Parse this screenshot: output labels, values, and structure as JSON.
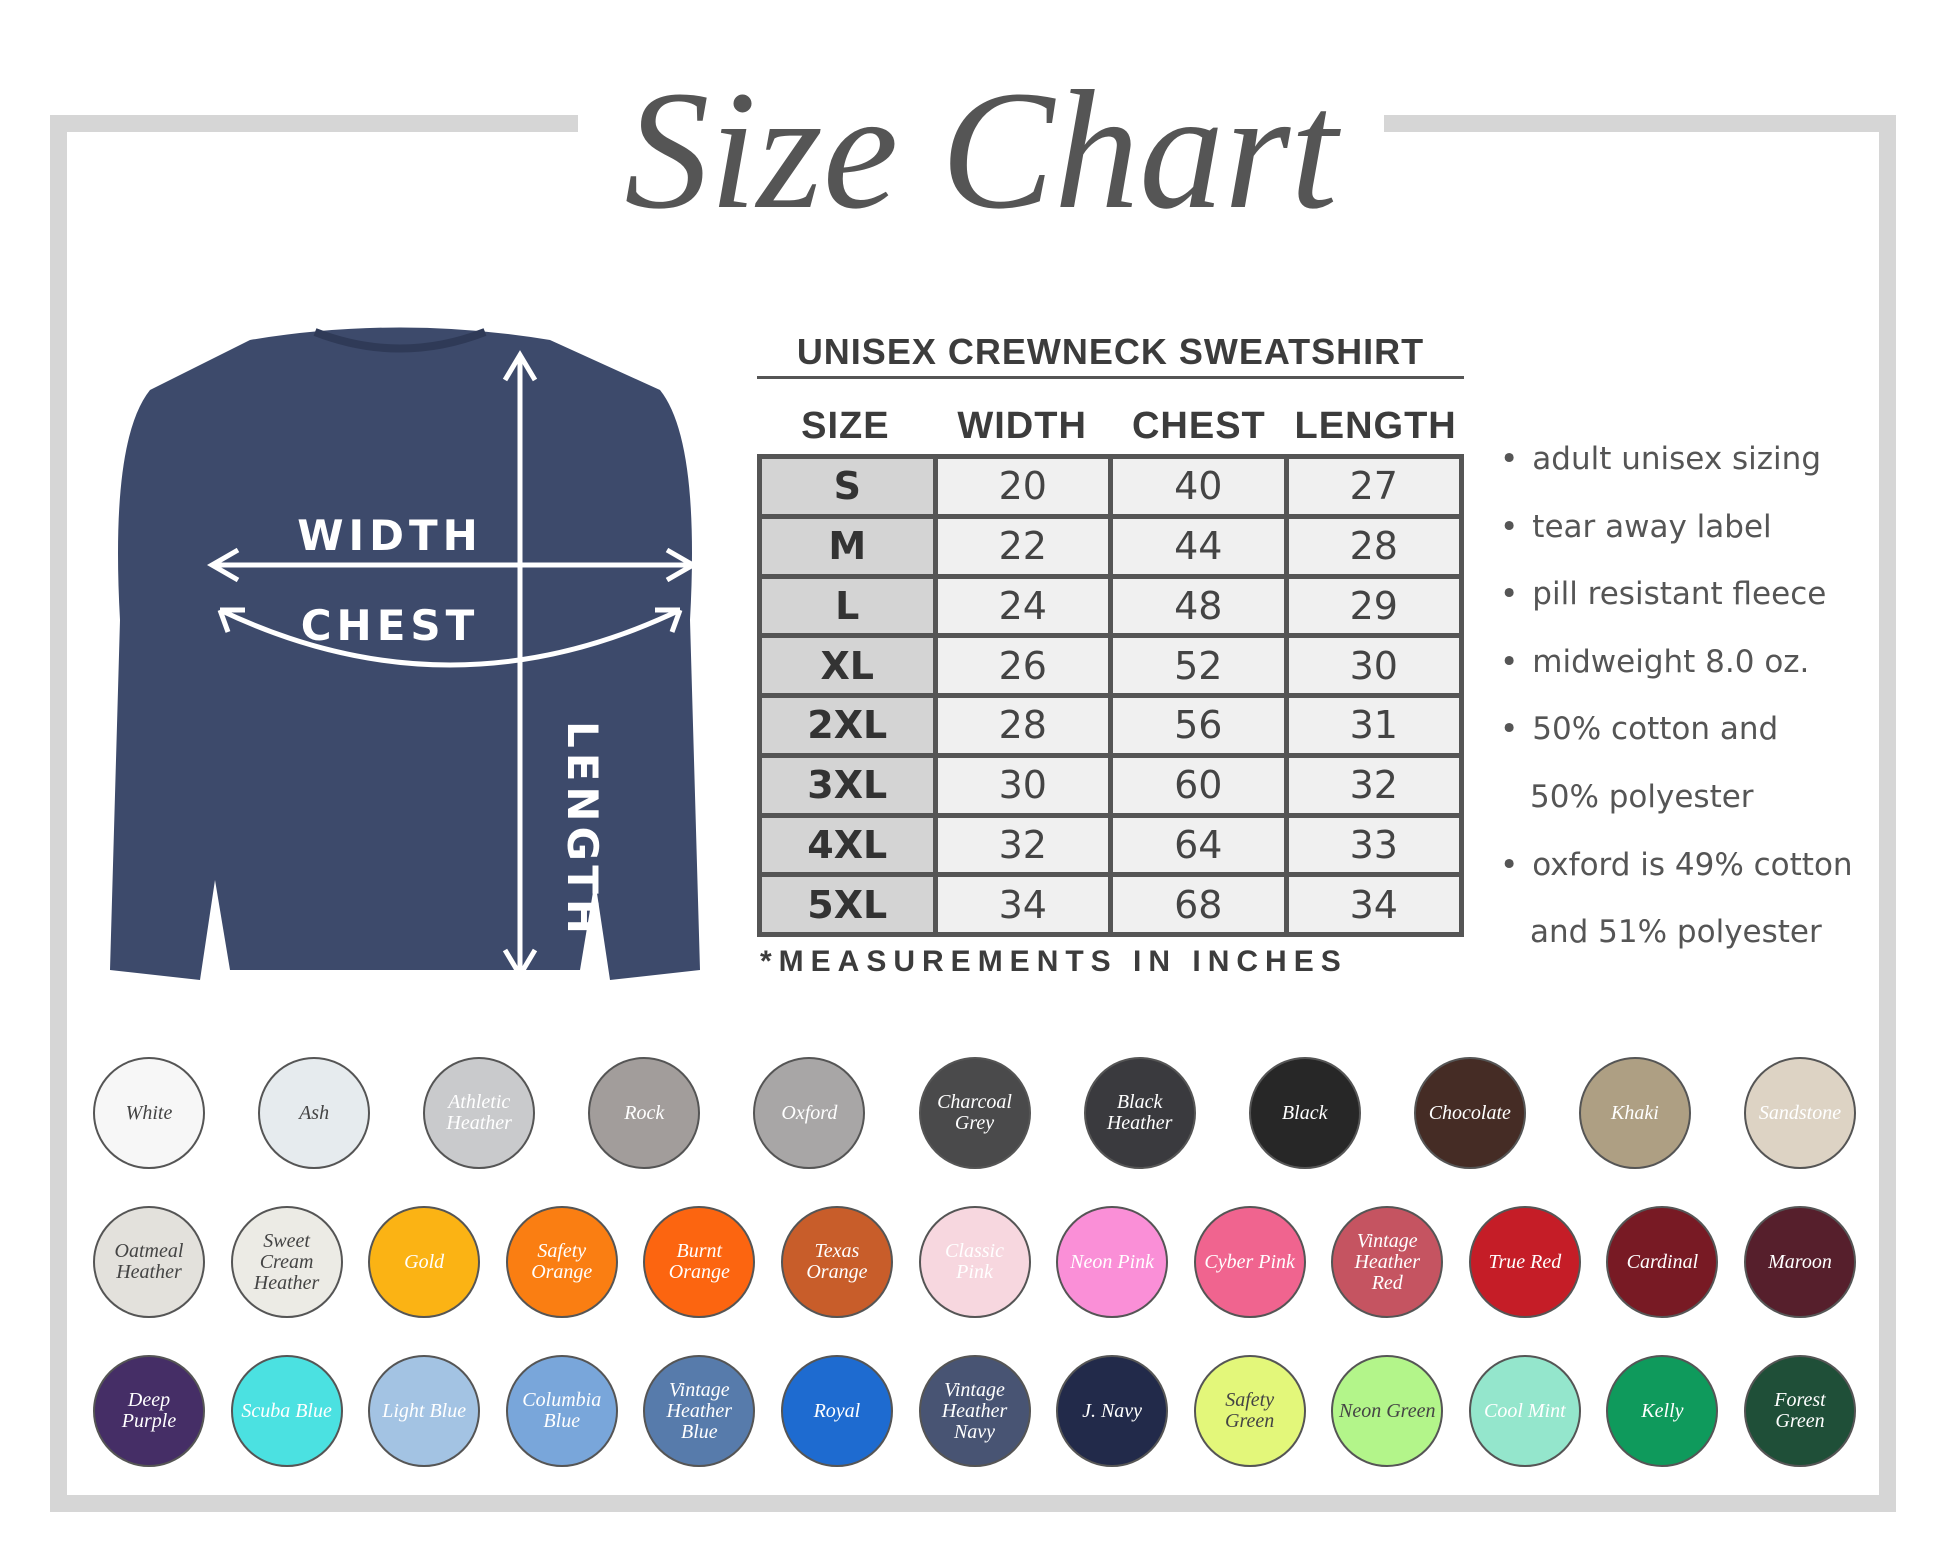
{
  "title": "Size Chart",
  "figure": {
    "width_label": "WIDTH",
    "chest_label": "CHEST",
    "length_label": "LENGTH",
    "shirt_color": "#3d4a6b"
  },
  "table": {
    "title": "UNISEX CREWNECK SWEATSHIRT",
    "headers": [
      "SIZE",
      "WIDTH",
      "CHEST",
      "LENGTH"
    ],
    "rows": [
      [
        "S",
        "20",
        "40",
        "27"
      ],
      [
        "M",
        "22",
        "44",
        "28"
      ],
      [
        "L",
        "24",
        "48",
        "29"
      ],
      [
        "XL",
        "26",
        "52",
        "30"
      ],
      [
        "2XL",
        "28",
        "56",
        "31"
      ],
      [
        "3XL",
        "30",
        "60",
        "32"
      ],
      [
        "4XL",
        "32",
        "64",
        "33"
      ],
      [
        "5XL",
        "34",
        "68",
        "34"
      ]
    ],
    "note": "*MEASUREMENTS IN INCHES"
  },
  "features": [
    "adult unisex sizing",
    "tear away label",
    "pill resistant fleece",
    "midweight 8.0 oz.",
    "50% cotton and",
    "50% polyester",
    "oxford is 49% cotton",
    "and 51% polyester"
  ],
  "swatch_rows": [
    [
      {
        "name": "White",
        "color": "#f7f7f7",
        "text": "#444"
      },
      {
        "name": "Ash",
        "color": "#e6ebee",
        "text": "#444"
      },
      {
        "name": "Athletic Heather",
        "color": "#c9cacc",
        "text": "#fff"
      },
      {
        "name": "Rock",
        "color": "#a29d9b",
        "text": "#fff"
      },
      {
        "name": "Oxford",
        "color": "#a8a6a6",
        "text": "#fff"
      },
      {
        "name": "Charcoal Grey",
        "color": "#4a4a4b",
        "text": "#fff"
      },
      {
        "name": "Black Heather",
        "color": "#3a3a3e",
        "text": "#fff"
      },
      {
        "name": "Black",
        "color": "#272727",
        "text": "#fff"
      },
      {
        "name": "Chocolate",
        "color": "#452c25",
        "text": "#fff"
      },
      {
        "name": "Khaki",
        "color": "#ae9f83",
        "text": "#fff"
      },
      {
        "name": "Sandstone",
        "color": "#ddd3c4",
        "text": "#fff"
      }
    ],
    [
      {
        "name": "Oatmeal Heather",
        "color": "#e3e1dc",
        "text": "#444"
      },
      {
        "name": "Sweet Cream Heather",
        "color": "#ecebe5",
        "text": "#444"
      },
      {
        "name": "Gold",
        "color": "#fbb314",
        "text": "#fff"
      },
      {
        "name": "Safety Orange",
        "color": "#fa7e12",
        "text": "#fff"
      },
      {
        "name": "Burnt Orange",
        "color": "#fc6510",
        "text": "#fff"
      },
      {
        "name": "Texas Orange",
        "color": "#c85d2a",
        "text": "#fff"
      },
      {
        "name": "Classic Pink",
        "color": "#f7d7df",
        "text": "#fff"
      },
      {
        "name": "Neon Pink",
        "color": "#fa8fd7",
        "text": "#fff"
      },
      {
        "name": "Cyber Pink",
        "color": "#f0648f",
        "text": "#fff"
      },
      {
        "name": "Vintage Heather Red",
        "color": "#c55461",
        "text": "#fff"
      },
      {
        "name": "True Red",
        "color": "#c51d27",
        "text": "#fff"
      },
      {
        "name": "Cardinal",
        "color": "#781a24",
        "text": "#fff"
      },
      {
        "name": "Maroon",
        "color": "#561f2c",
        "text": "#fff"
      }
    ],
    [
      {
        "name": "Deep Purple",
        "color": "#452e66",
        "text": "#fff"
      },
      {
        "name": "Scuba Blue",
        "color": "#4be1e1",
        "text": "#fff"
      },
      {
        "name": "Light Blue",
        "color": "#a3c3e3",
        "text": "#fff"
      },
      {
        "name": "Columbia Blue",
        "color": "#79a6da",
        "text": "#fff"
      },
      {
        "name": "Vintage Heather Blue",
        "color": "#577bab",
        "text": "#fff"
      },
      {
        "name": "Royal",
        "color": "#1e6bd0",
        "text": "#fff"
      },
      {
        "name": "Vintage Heather Navy",
        "color": "#485473",
        "text": "#fff"
      },
      {
        "name": "J. Navy",
        "color": "#222a4a",
        "text": "#fff"
      },
      {
        "name": "Safety Green",
        "color": "#e3f77a",
        "text": "#444"
      },
      {
        "name": "Neon Green",
        "color": "#b3f58a",
        "text": "#444"
      },
      {
        "name": "Cool Mint",
        "color": "#94e6cc",
        "text": "#fff"
      },
      {
        "name": "Kelly",
        "color": "#0f9a5c",
        "text": "#fff"
      },
      {
        "name": "Forest Green",
        "color": "#1f4f38",
        "text": "#fff"
      }
    ]
  ]
}
